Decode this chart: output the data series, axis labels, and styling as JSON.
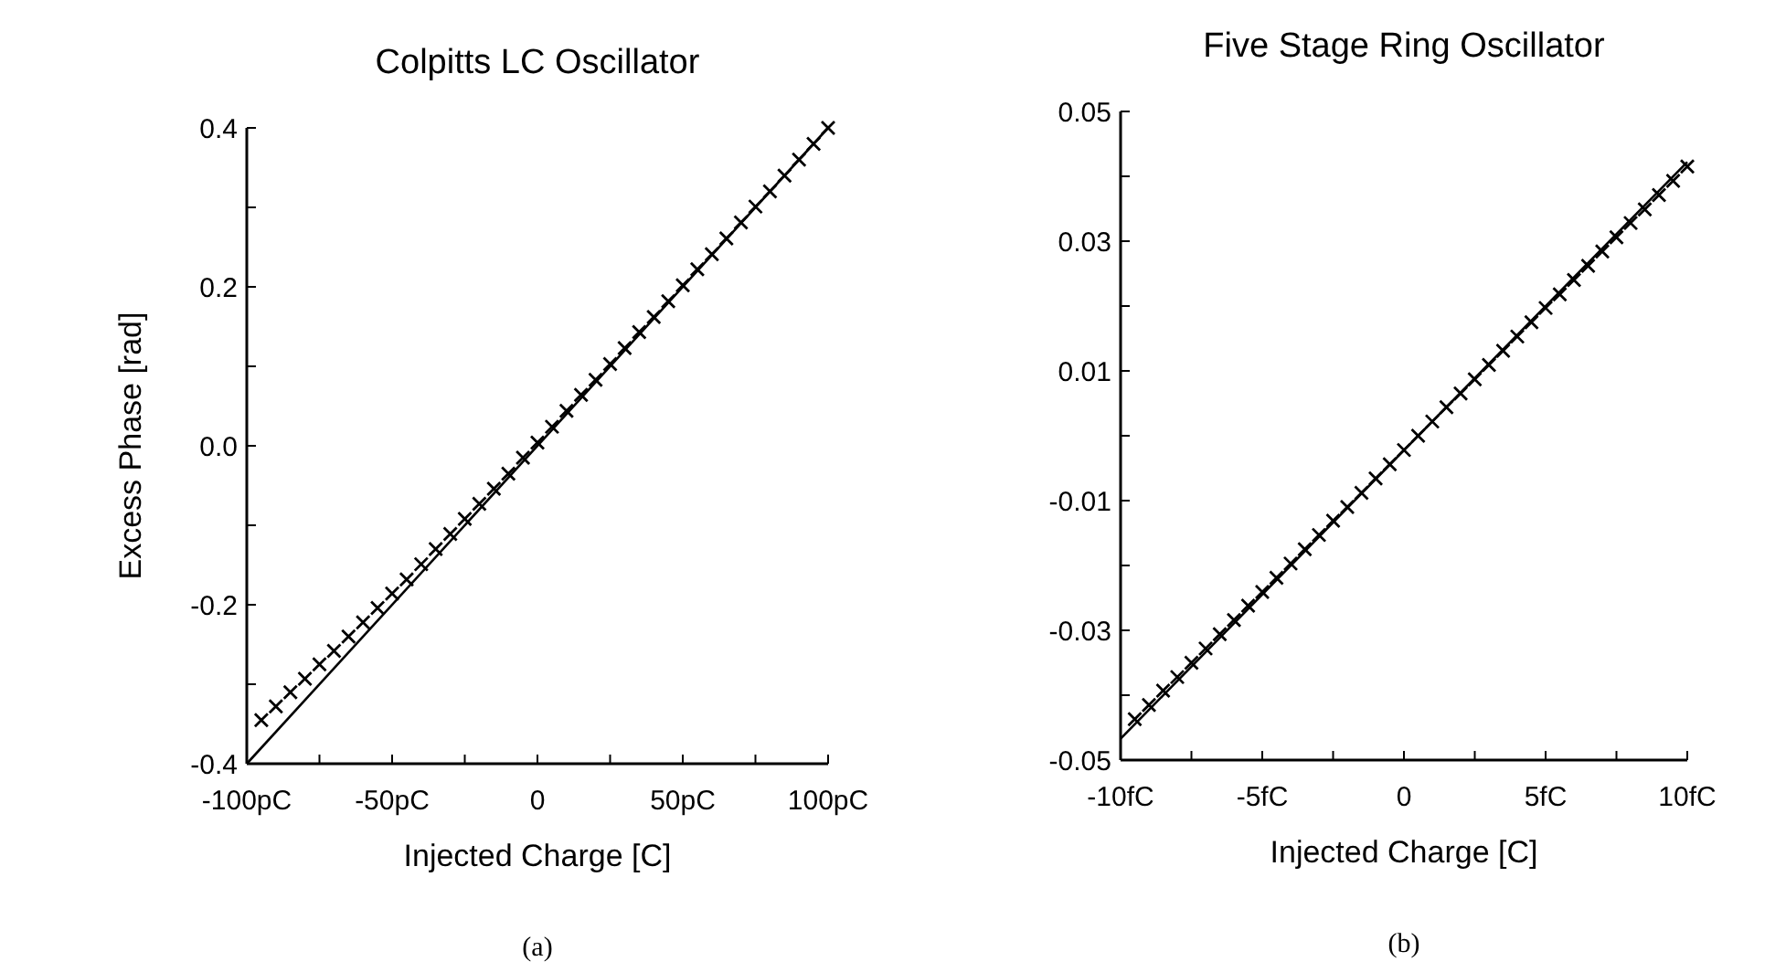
{
  "chart_data": [
    {
      "type": "line",
      "title": "Colpitts LC Oscillator",
      "xlabel": "Injected Charge [C]",
      "ylabel": "Excess Phase [rad]",
      "annotations": [
        "(a)"
      ],
      "xlim": [
        -100,
        100
      ],
      "ylim": [
        -0.4,
        0.4
      ],
      "xticks": [
        {
          "value": -100,
          "label": "-100pC"
        },
        {
          "value": -75,
          "label": null
        },
        {
          "value": -50,
          "label": "-50pC"
        },
        {
          "value": -25,
          "label": null
        },
        0,
        {
          "value": 25,
          "label": null
        },
        {
          "value": 50,
          "label": "50pC"
        },
        {
          "value": 75,
          "label": null
        },
        {
          "value": 100,
          "label": "100pC"
        }
      ],
      "yticks": [
        {
          "value": -0.4,
          "label": "-0.4"
        },
        {
          "value": -0.3,
          "label": null
        },
        {
          "value": -0.2,
          "label": "-0.2"
        },
        {
          "value": -0.1,
          "label": null
        },
        {
          "value": 0,
          "label": "0.0"
        },
        {
          "value": 0.1,
          "label": null
        },
        {
          "value": 0.2,
          "label": "0.2"
        },
        {
          "value": 0.3,
          "label": null
        },
        {
          "value": 0.4,
          "label": "0.4"
        }
      ],
      "series": [
        {
          "color": "#000000",
          "x": [
            -100,
            100
          ],
          "values": [
            -0.4,
            0.4
          ]
        },
        {
          "type": "scatter",
          "color": "#000000",
          "marker": "cross",
          "x": [
            -95,
            -90,
            -85,
            -80,
            -75,
            -70,
            -65,
            -60,
            -55,
            -50,
            -45,
            -40,
            -35,
            -30,
            -25,
            -20,
            -15,
            -10,
            -5,
            0,
            5,
            10,
            15,
            20,
            25,
            30,
            35,
            40,
            45,
            50,
            55,
            60,
            65,
            70,
            75,
            80,
            85,
            90,
            95,
            100
          ],
          "values": [
            -0.345,
            -0.328,
            -0.31,
            -0.293,
            -0.275,
            -0.258,
            -0.24,
            -0.222,
            -0.204,
            -0.186,
            -0.168,
            -0.149,
            -0.13,
            -0.111,
            -0.092,
            -0.073,
            -0.054,
            -0.035,
            -0.015,
            0.004,
            0.024,
            0.044,
            0.064,
            0.083,
            0.103,
            0.123,
            0.143,
            0.162,
            0.182,
            0.202,
            0.222,
            0.241,
            0.261,
            0.281,
            0.301,
            0.32,
            0.34,
            0.36,
            0.38,
            0.4
          ]
        }
      ]
    },
    {
      "type": "line",
      "title": "Five Stage Ring Oscillator",
      "xlabel": "Injected Charge [C]",
      "annotations": [
        "(b)"
      ],
      "xlim": [
        -10,
        10
      ],
      "ylim": [
        -0.05,
        0.05
      ],
      "xticks": [
        {
          "value": -10,
          "label": "-10fC"
        },
        {
          "value": -7.5,
          "label": null
        },
        {
          "value": -5,
          "label": "-5fC"
        },
        {
          "value": -2.5,
          "label": null
        },
        0,
        {
          "value": 2.5,
          "label": null
        },
        {
          "value": 5,
          "label": "5fC"
        },
        {
          "value": 7.5,
          "label": null
        },
        {
          "value": 10,
          "label": "10fC"
        }
      ],
      "yticks": [
        -0.05,
        {
          "value": -0.04,
          "label": null
        },
        -0.03,
        {
          "value": -0.02,
          "label": null
        },
        -0.01,
        {
          "value": 0,
          "label": null
        },
        0.01,
        {
          "value": 0.02,
          "label": null
        },
        0.03,
        {
          "value": 0.04,
          "label": null
        },
        0.05
      ],
      "series": [
        {
          "color": "#000000",
          "x": [
            -10,
            10
          ],
          "values": [
            -0.0467,
            0.0422
          ]
        },
        {
          "type": "scatter",
          "color": "#000000",
          "marker": "cross",
          "x": [
            -9.5,
            -9,
            -8.5,
            -8,
            -7.5,
            -7,
            -6.5,
            -6,
            -5.5,
            -5,
            -4.5,
            -4,
            -3.5,
            -3,
            -2.5,
            -2,
            -1.5,
            -1,
            -0.5,
            0,
            0.5,
            1,
            1.5,
            2,
            2.5,
            3,
            3.5,
            4,
            4.5,
            5,
            5.5,
            6,
            6.5,
            7,
            7.5,
            8,
            8.5,
            9,
            9.5,
            10
          ],
          "values": [
            -0.0437,
            -0.0415,
            -0.0393,
            -0.0372,
            -0.035,
            -0.0328,
            -0.0306,
            -0.0284,
            -0.0262,
            -0.0241,
            -0.0219,
            -0.0197,
            -0.0175,
            -0.0153,
            -0.0131,
            -0.011,
            -0.0088,
            -0.0066,
            -0.0044,
            -0.0022,
            0,
            0.0022,
            0.0044,
            0.0065,
            0.0087,
            0.0109,
            0.0131,
            0.0153,
            0.0175,
            0.0197,
            0.0218,
            0.024,
            0.0262,
            0.0284,
            0.0306,
            0.0328,
            0.0349,
            0.0371,
            0.0393,
            0.0415
          ]
        }
      ]
    }
  ]
}
